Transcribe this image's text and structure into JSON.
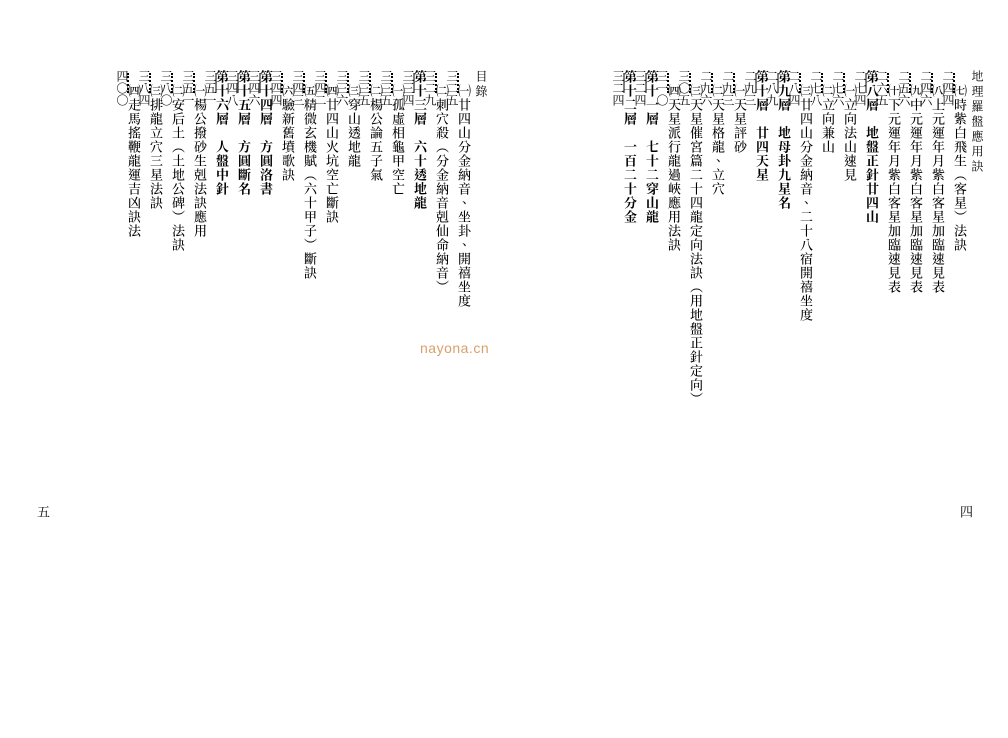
{
  "book_title_right": "地理羅盤應用訣",
  "book_title_left": "目錄",
  "page_number_right": "四",
  "page_number_left": "五",
  "watermark": "nayona.cn",
  "right_page": [
    {
      "title": "㈦時紫白飛生（客星）法訣",
      "leader": "dots",
      "page": "二四四",
      "indent": true
    },
    {
      "title": "㈧上元運年月紫白客星加臨速見表",
      "leader": "dots",
      "page": "二四六",
      "indent": true
    },
    {
      "title": "㈨中元運年月紫白客星加臨速見表",
      "leader": "dots",
      "page": "二五六",
      "indent": true
    },
    {
      "title": "㈩下元運年月紫白客星加臨速見表",
      "leader": "dots",
      "page": "二六五",
      "indent": true
    },
    {
      "title": "第八層　地盤正針廿四山",
      "leader": "line",
      "page": "二七四",
      "section": true
    },
    {
      "title": "㈠立向法山速見",
      "leader": "dots",
      "page": "二七六",
      "indent": true
    },
    {
      "title": "㈡立向兼山",
      "leader": "dots",
      "page": "二七八",
      "indent": true
    },
    {
      "title": "㈢廿四山分金納音、二十八宿開禧坐度",
      "leader": "dots",
      "page": "二八四",
      "indent": true
    },
    {
      "title": "第九層　地母卦九星名",
      "leader": "line",
      "page": "二八九",
      "section": true
    },
    {
      "title": "第十層　廿四天星",
      "leader": "line",
      "page": "二九三",
      "section": true
    },
    {
      "title": "㈠天星評砂",
      "leader": "dots",
      "page": "二九三",
      "indent": true
    },
    {
      "title": "㈡天星格龍、立穴",
      "leader": "dots",
      "page": "二九六",
      "indent": true
    },
    {
      "title": "㈢天星催宮篇二十四龍定向法訣（用地盤正針定向）",
      "leader": "dots",
      "page": "三〇五",
      "indent": true
    },
    {
      "title": "㈣天星派行龍過峽應用法訣",
      "leader": "dots",
      "page": "三一〇",
      "indent": true
    },
    {
      "title": "第十一層　七十二穿山龍",
      "leader": "line",
      "page": "三二四",
      "section": true
    },
    {
      "title": "第十二層　一百二十分金",
      "leader": "line",
      "page": "三二四",
      "section": true
    }
  ],
  "left_page": [
    {
      "title": "㈠廿四山分金納音、坐卦、開禧坐度",
      "leader": "dots",
      "page": "三二五",
      "indent": true
    },
    {
      "title": "㈡刺穴殺（分金納音剋仙命納音）",
      "leader": "dots",
      "page": "三二九",
      "indent": true
    },
    {
      "title": "第十三層　六十透地龍",
      "leader": "line",
      "page": "三三四",
      "section": true
    },
    {
      "title": "㈠孤虛相龜甲空亡",
      "leader": "dots",
      "page": "三三五",
      "indent": true
    },
    {
      "title": "㈡楊公論五子氣",
      "leader": "dots",
      "page": "三三五",
      "indent": true
    },
    {
      "title": "㈢穿山透地龍",
      "leader": "dots",
      "page": "三三六",
      "indent": true
    },
    {
      "title": "㈣廿四山火坑空亡斷訣",
      "leader": "dots",
      "page": "三四二",
      "indent": true
    },
    {
      "title": "㈤精微玄機賦（六十甲子）斷訣",
      "leader": "dots",
      "page": "三四三",
      "indent": true
    },
    {
      "title": "㈥驗新舊墳歌訣",
      "leader": "dots",
      "page": "三四四",
      "indent": true
    },
    {
      "title": "第十四層　方圓洛書",
      "leader": "line",
      "page": "三四六",
      "section": true
    },
    {
      "title": "第十五層　方圓斷名",
      "leader": "line",
      "page": "三四八",
      "section": true
    },
    {
      "title": "第十六層　人盤中針",
      "leader": "line",
      "page": "三五一",
      "section": true
    },
    {
      "title": "㈠楊公撥砂生剋法訣應用",
      "leader": "dots",
      "page": "三五一",
      "indent": true
    },
    {
      "title": "㈡安后土（土地公碑）法訣",
      "leader": "dots",
      "page": "三八〇",
      "indent": true
    },
    {
      "title": "㈢排龍立穴三星法訣",
      "leader": "dots",
      "page": "三八四",
      "indent": true
    },
    {
      "title": "㈣走馬搖鞭龍運吉凶訣法",
      "leader": "dots",
      "page": "四〇〇",
      "indent": true
    }
  ]
}
